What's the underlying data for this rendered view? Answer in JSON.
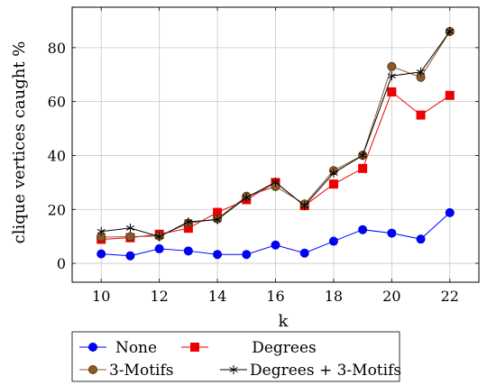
{
  "chart_data": {
    "type": "line",
    "title": "",
    "xlabel": "k",
    "ylabel": "clique vertices caught %",
    "xlim": [
      9,
      23
    ],
    "ylim": [
      -7,
      95
    ],
    "x_ticks": [
      10,
      12,
      14,
      16,
      18,
      20,
      22
    ],
    "y_ticks": [
      0,
      20,
      40,
      60,
      80
    ],
    "grid": true,
    "legend_position": "bottom-center",
    "x": [
      10,
      11,
      12,
      13,
      14,
      15,
      16,
      17,
      18,
      19,
      20,
      21,
      22
    ],
    "series": [
      {
        "name": "None",
        "color": "#0000ff",
        "marker": "circle",
        "values": [
          3.5,
          2.8,
          5.4,
          4.6,
          3.3,
          3.3,
          6.8,
          3.8,
          8.2,
          12.5,
          11.2,
          9.0,
          18.8
        ]
      },
      {
        "name": "Degrees",
        "color": "#ee0000",
        "marker": "square",
        "values": [
          8.9,
          9.5,
          10.8,
          13.0,
          18.9,
          23.6,
          30.0,
          21.4,
          29.4,
          35.2,
          63.6,
          55.0,
          62.3
        ]
      },
      {
        "name": "3-Motifs",
        "color": "#8b5a2b",
        "marker": "circle",
        "values": [
          9.7,
          9.9,
          10.1,
          14.9,
          16.5,
          24.9,
          28.5,
          22.0,
          34.4,
          40.1,
          73.0,
          69.0,
          86.0
        ]
      },
      {
        "name": "Degrees + 3-Motifs",
        "color": "#000000",
        "marker": "star",
        "values": [
          11.8,
          13.1,
          9.9,
          15.4,
          16.2,
          24.4,
          30.1,
          21.4,
          33.5,
          40.0,
          69.5,
          71.0,
          86.0
        ]
      }
    ]
  }
}
